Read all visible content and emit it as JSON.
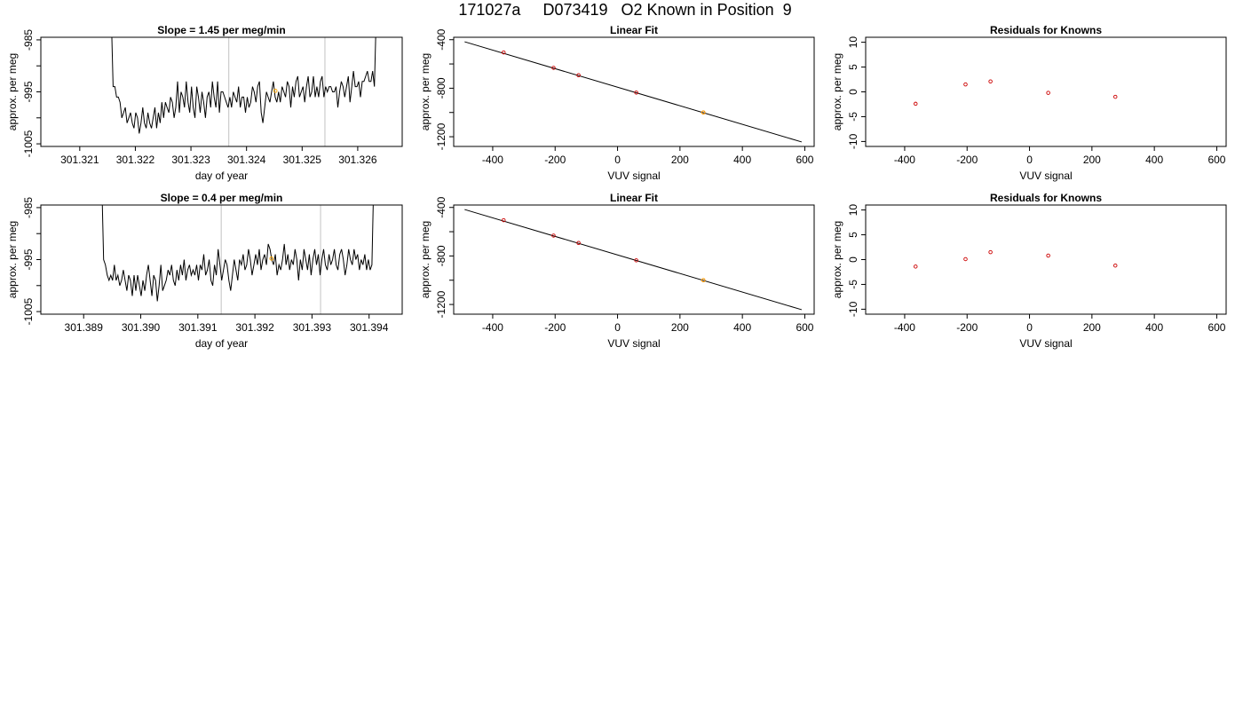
{
  "figure": {
    "title": "171027a     D073419   O2 Known in Position  9"
  },
  "chart_data": [
    {
      "type": "line",
      "title": "Slope =  1.45  per meg/min",
      "xlabel": "day of year",
      "ylabel": "approx. per meg",
      "xlim": [
        301.3203,
        301.3268
      ],
      "ylim": [
        -1005.5,
        -984.5
      ],
      "xticks": [
        301.321,
        301.322,
        301.323,
        301.324,
        301.325,
        301.326
      ],
      "xtick_labels": [
        "301.321",
        "301.322",
        "301.323",
        "301.324",
        "301.325",
        "301.326"
      ],
      "yticks": [
        -1005,
        -1000,
        -995,
        -990,
        -985
      ],
      "ytick_labels": [
        "-1005",
        "",
        "-995",
        "",
        "-985"
      ],
      "vlines": [
        301.32368,
        301.32541
      ],
      "vline_color": "#cccccc",
      "highlight_points": [
        {
          "x": 301.32452,
          "y": -994.8
        }
      ],
      "highlight_color": "#ffa500",
      "x_start": 301.3216,
      "x_end": 301.3263,
      "y_first": -984,
      "y_last": -984,
      "values": [
        -994,
        -994,
        -996,
        -996,
        -997,
        -1000,
        -999,
        -998,
        -1001,
        -1000,
        -999,
        -1001,
        -1002,
        -999,
        -1000,
        -1003,
        -1001,
        -998,
        -1001,
        -1002,
        -999,
        -1001,
        -1002,
        -1000,
        -998,
        -1002,
        -999,
        -1001,
        -997,
        -1000,
        -997,
        -998,
        -999,
        -996,
        -997,
        -1000,
        -998,
        -993,
        -999,
        -995,
        -996,
        -998,
        -993,
        -997,
        -999,
        -994,
        -998,
        -1000,
        -994,
        -996,
        -999,
        -995,
        -997,
        -1000,
        -996,
        -995,
        -998,
        -993,
        -996,
        -998,
        -993,
        -999,
        -995,
        -995,
        -996,
        -997,
        -998,
        -996,
        -998,
        -995,
        -996,
        -997,
        -994,
        -998,
        -996,
        -996,
        -999,
        -996,
        -998,
        -997,
        -994,
        -995,
        -997,
        -994,
        -993,
        -999,
        -1001,
        -998,
        -995,
        -996,
        -997,
        -995,
        -993,
        -996,
        -997,
        -995,
        -997,
        -994,
        -995,
        -996,
        -993,
        -994,
        -998,
        -994,
        -996,
        -993,
        -992,
        -996,
        -995,
        -994,
        -997,
        -994,
        -992,
        -996,
        -995,
        -992,
        -996,
        -994,
        -996,
        -993,
        -992,
        -996,
        -994,
        -995,
        -994,
        -994,
        -995,
        -995,
        -994,
        -998,
        -995,
        -993,
        -994,
        -996,
        -994,
        -992,
        -997,
        -994,
        -991,
        -994,
        -994,
        -993,
        -996,
        -993,
        -993,
        -992,
        -991,
        -993,
        -993,
        -991,
        -994
      ]
    },
    {
      "type": "scatter",
      "title": "Linear Fit",
      "xlabel": "VUV signal",
      "ylabel": "approx. per meg",
      "xlim": [
        -525,
        630
      ],
      "ylim": [
        -1280,
        -380
      ],
      "xticks": [
        -400,
        -200,
        0,
        200,
        400,
        600
      ],
      "xtick_labels": [
        "-400",
        "-200",
        "0",
        "200",
        "400",
        "600"
      ],
      "yticks": [
        -1200,
        -1000,
        -800,
        -600,
        -400
      ],
      "ytick_labels": [
        "-1200",
        "",
        "-800",
        "",
        "-400"
      ],
      "fit_line": {
        "x": [
          -490,
          590
        ],
        "y": [
          -417,
          -1243
        ]
      },
      "points": [
        {
          "x": -365,
          "y": -505
        },
        {
          "x": -205,
          "y": -632
        },
        {
          "x": -125,
          "y": -693
        },
        {
          "x": 60,
          "y": -836
        },
        {
          "x": 275,
          "y": -1000
        }
      ],
      "point_color": "#cc0000",
      "highlight_points": [
        {
          "x": 275,
          "y": -1000
        }
      ],
      "highlight_color": "#ffa500"
    },
    {
      "type": "scatter",
      "title": "Residuals for Knowns",
      "xlabel": "VUV signal",
      "ylabel": "approx. per meg",
      "xlim": [
        -525,
        630
      ],
      "ylim": [
        -11,
        11
      ],
      "xticks": [
        -400,
        -200,
        0,
        200,
        400,
        600
      ],
      "xtick_labels": [
        "-400",
        "-200",
        "0",
        "200",
        "400",
        "600"
      ],
      "yticks": [
        -10,
        -5,
        0,
        5,
        10
      ],
      "ytick_labels": [
        "-10",
        "-5",
        "0",
        "5",
        "10"
      ],
      "points": [
        {
          "x": -365,
          "y": -2.4
        },
        {
          "x": -205,
          "y": 1.5
        },
        {
          "x": -125,
          "y": 2.1
        },
        {
          "x": 60,
          "y": -0.2
        },
        {
          "x": 275,
          "y": -1.0
        }
      ],
      "point_color": "#cc0000"
    },
    {
      "type": "line",
      "title": "Slope =  0.4  per meg/min",
      "xlabel": "day of year",
      "ylabel": "approx. per meg",
      "xlim": [
        301.38825,
        301.39458
      ],
      "ylim": [
        -1005.5,
        -984.5
      ],
      "xticks": [
        301.389,
        301.39,
        301.391,
        301.392,
        301.393,
        301.394
      ],
      "xtick_labels": [
        "301.389",
        "301.390",
        "301.391",
        "301.392",
        "301.393",
        "301.394"
      ],
      "yticks": [
        -1005,
        -1000,
        -995,
        -990,
        -985
      ],
      "ytick_labels": [
        "-1005",
        "",
        "-995",
        "",
        "-985"
      ],
      "vlines": [
        301.39141,
        301.39315
      ],
      "vline_color": "#cccccc",
      "highlight_points": [
        {
          "x": 301.39229,
          "y": -994.8
        }
      ],
      "highlight_color": "#ffa500",
      "x_start": 301.38935,
      "x_end": 301.39405,
      "y_first": -984,
      "y_last": -984,
      "values": [
        -995,
        -996,
        -998,
        -999,
        -998,
        -999,
        -996,
        -999,
        -998,
        -1000,
        -999,
        -997,
        -999,
        -1001,
        -998,
        -999,
        -1002,
        -998,
        -1001,
        -998,
        -1000,
        -1002,
        -999,
        -1001,
        -998,
        -996,
        -999,
        -1002,
        -998,
        -999,
        -1003,
        -1000,
        -996,
        -1001,
        -1000,
        -999,
        -997,
        -998,
        -996,
        -999,
        -1000,
        -997,
        -999,
        -996,
        -998,
        -995,
        -999,
        -997,
        -996,
        -998,
        -997,
        -998,
        -996,
        -999,
        -996,
        -997,
        -994,
        -998,
        -997,
        -995,
        -999,
        -1000,
        -996,
        -998,
        -993,
        -996,
        -999,
        -997,
        -995,
        -996,
        -999,
        -1001,
        -998,
        -995,
        -997,
        -999,
        -995,
        -996,
        -994,
        -997,
        -996,
        -993,
        -995,
        -998,
        -996,
        -994,
        -996,
        -993,
        -997,
        -995,
        -994,
        -996,
        -992,
        -993,
        -995,
        -996,
        -994,
        -998,
        -996,
        -997,
        -995,
        -992,
        -996,
        -994,
        -997,
        -995,
        -996,
        -993,
        -995,
        -999,
        -995,
        -997,
        -993,
        -995,
        -997,
        -994,
        -998,
        -995,
        -993,
        -996,
        -994,
        -998,
        -995,
        -993,
        -996,
        -997,
        -994,
        -996,
        -995,
        -993,
        -996,
        -997,
        -994,
        -993,
        -995,
        -998,
        -996,
        -993,
        -995,
        -996,
        -993,
        -995,
        -994,
        -997,
        -995,
        -996,
        -994,
        -997,
        -995,
        -997,
        -996
      ]
    },
    {
      "type": "scatter",
      "title": "Linear Fit",
      "xlabel": "VUV signal",
      "ylabel": "approx. per meg",
      "xlim": [
        -525,
        630
      ],
      "ylim": [
        -1280,
        -380
      ],
      "xticks": [
        -400,
        -200,
        0,
        200,
        400,
        600
      ],
      "xtick_labels": [
        "-400",
        "-200",
        "0",
        "200",
        "400",
        "600"
      ],
      "yticks": [
        -1200,
        -1000,
        -800,
        -600,
        -400
      ],
      "ytick_labels": [
        "-1200",
        "",
        "-800",
        "",
        "-400"
      ],
      "fit_line": {
        "x": [
          -490,
          590
        ],
        "y": [
          -417,
          -1243
        ]
      },
      "points": [
        {
          "x": -365,
          "y": -505
        },
        {
          "x": -205,
          "y": -632
        },
        {
          "x": -125,
          "y": -693
        },
        {
          "x": 60,
          "y": -836
        },
        {
          "x": 275,
          "y": -1000
        }
      ],
      "point_color": "#cc0000",
      "highlight_points": [
        {
          "x": 275,
          "y": -1000
        }
      ],
      "highlight_color": "#ffa500"
    },
    {
      "type": "scatter",
      "title": "Residuals for Knowns",
      "xlabel": "VUV signal",
      "ylabel": "approx. per meg",
      "xlim": [
        -525,
        630
      ],
      "ylim": [
        -11,
        11
      ],
      "xticks": [
        -400,
        -200,
        0,
        200,
        400,
        600
      ],
      "xtick_labels": [
        "-400",
        "-200",
        "0",
        "200",
        "400",
        "600"
      ],
      "yticks": [
        -10,
        -5,
        0,
        5,
        10
      ],
      "ytick_labels": [
        "-10",
        "-5",
        "0",
        "5",
        "10"
      ],
      "points": [
        {
          "x": -365,
          "y": -1.4
        },
        {
          "x": -205,
          "y": 0.1
        },
        {
          "x": -125,
          "y": 1.5
        },
        {
          "x": 60,
          "y": 0.8
        },
        {
          "x": 275,
          "y": -1.2
        }
      ],
      "point_color": "#cc0000"
    }
  ]
}
